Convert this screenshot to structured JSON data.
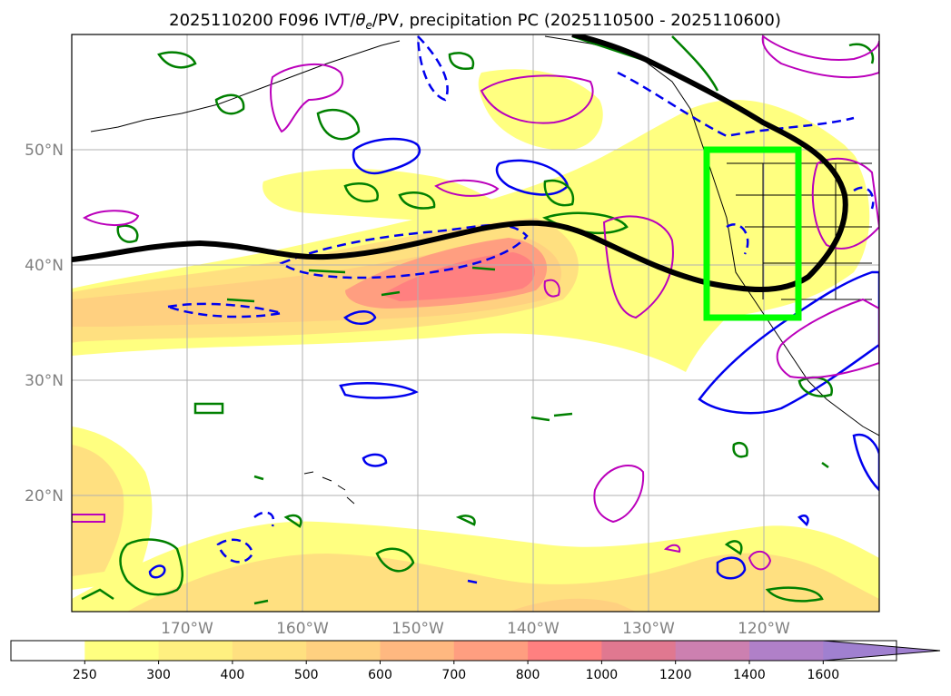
{
  "title": {
    "prefix": "2025110200 F096 IVT/",
    "theta": "θ",
    "theta_sub": "e",
    "suffix": "/PV, precipitation PC (2025110500 - 2025110600)"
  },
  "map": {
    "lat_labels": [
      "50°N",
      "40°N",
      "30°N",
      "20°N"
    ],
    "lon_labels": [
      "170°W",
      "160°W",
      "150°W",
      "140°W",
      "130°W",
      "120°W"
    ],
    "grid": true
  },
  "colorbar": {
    "ticks": [
      "250",
      "300",
      "400",
      "500",
      "600",
      "700",
      "800",
      "1000",
      "1200",
      "1400",
      "1600"
    ],
    "colors": [
      "#ffffff",
      "#ffff80",
      "#fff080",
      "#ffe080",
      "#ffd080",
      "#ffb880",
      "#ff9e80",
      "#ff8080",
      "#e07890",
      "#cc80b0",
      "#b080c8",
      "#a080d0"
    ],
    "extend": "max"
  },
  "layers": {
    "ivt_fill": "#ffdd70",
    "ivt_core": "#ff7a70",
    "theta_e_color": "#0000ee",
    "pv_color": "#008000",
    "precip_color": "#bb00bb",
    "jet_line_color": "#000000",
    "highlight_box_color": "#00ff00"
  }
}
